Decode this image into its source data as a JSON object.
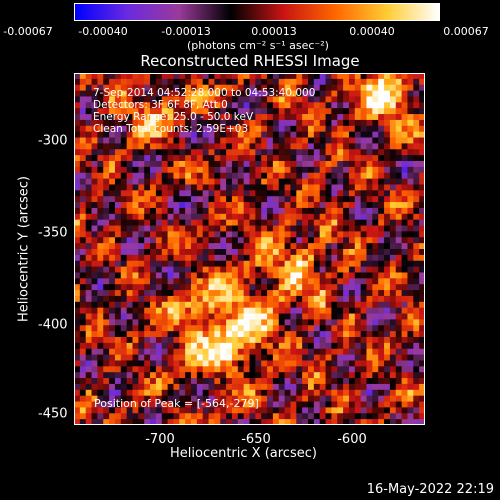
{
  "chart_data": {
    "type": "heatmap",
    "title": "Reconstructed RHESSI Image",
    "xlabel": "Heliocentric X (arcsec)",
    "ylabel": "Heliocentric Y (arcsec)",
    "xlim": [
      -748,
      -643
    ],
    "ylim": [
      -456,
      -265
    ],
    "xticks": [
      "-700",
      "-650",
      "-600"
    ],
    "xtick_values": [
      -700,
      -650,
      -600
    ],
    "yticks": [
      "-300",
      "-350",
      "-400",
      "-450"
    ],
    "ytick_values": [
      -300,
      -350,
      -400,
      -450
    ],
    "colorbar": {
      "ticks": [
        "-0.00067",
        "-0.00040",
        "-0.00013",
        "0.00013",
        "0.00040",
        "0.00067"
      ],
      "min": -0.00067,
      "max": 0.00067,
      "units": "(photons cm⁻² s⁻¹ asec⁻²)",
      "colors": [
        "#0000ff",
        "#6a2ae0",
        "#9a3a9a",
        "#000000",
        "#c81414",
        "#ff6600",
        "#ffcc33",
        "#ffffff"
      ]
    },
    "peak": {
      "x": -564,
      "y": -279
    },
    "annotations": [
      " 7-Sep-2014 04:52:28.000 to 04:53:40.000",
      "Detectors: 3F 6F 8F, Att 0",
      "Energy Range: 25.0 - 50.0 keV",
      "Clean     Total counts: 2.59E+03"
    ],
    "peak_label": "Position of Peak = [-564,-279]"
  },
  "footer": {
    "date": "16-May-2022 22:19"
  }
}
